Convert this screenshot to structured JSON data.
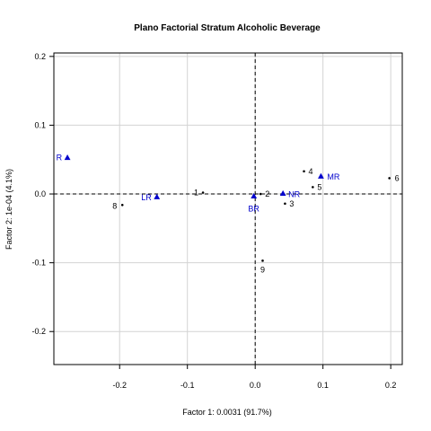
{
  "chart_data": {
    "type": "scatter",
    "title": "Plano Factorial Stratum Alcoholic Beverage",
    "xlabel": "Factor 1: 0.0031 (91.7%)",
    "ylabel": "Factor 2: 1e-04 (4.1%)",
    "xlim": [
      -0.297,
      0.217
    ],
    "ylim": [
      -0.248,
      0.205
    ],
    "xticks": [
      -0.2,
      -0.1,
      0.0,
      0.1,
      0.2
    ],
    "xtick_labels": [
      "-0.2",
      "-0.1",
      "0.0",
      "0.1",
      "0.2"
    ],
    "yticks": [
      -0.2,
      -0.1,
      0.0,
      0.1,
      0.2
    ],
    "ytick_labels": [
      "-0.2",
      "-0.1",
      "0.0",
      "0.1",
      "0.2"
    ],
    "grid": true,
    "reference_lines": {
      "x": 0,
      "y": 0,
      "style": "dashed"
    },
    "accent_color": "#0000cc",
    "series": [
      {
        "marker": "dot",
        "color": "#000000",
        "points": [
          {
            "label": "1",
            "x": -0.077,
            "y": 0.002
          },
          {
            "label": "2",
            "x": 0.008,
            "y": 0.0
          },
          {
            "label": "3",
            "x": 0.044,
            "y": -0.014
          },
          {
            "label": "4",
            "x": 0.072,
            "y": 0.033
          },
          {
            "label": "5",
            "x": 0.085,
            "y": 0.01
          },
          {
            "label": "6",
            "x": 0.198,
            "y": 0.023
          },
          {
            "label": "8",
            "x": -0.196,
            "y": -0.016
          },
          {
            "label": "9",
            "x": 0.011,
            "y": -0.097
          }
        ]
      },
      {
        "marker": "triangle",
        "color": "#0000cc",
        "points": [
          {
            "label": "R",
            "x": -0.277,
            "y": 0.053
          },
          {
            "label": "LR",
            "x": -0.145,
            "y": -0.004
          },
          {
            "label": "BR",
            "x": -0.002,
            "y": -0.003
          },
          {
            "label": "NR",
            "x": 0.041,
            "y": 0.001
          },
          {
            "label": "MR",
            "x": 0.097,
            "y": 0.026
          }
        ]
      }
    ]
  }
}
